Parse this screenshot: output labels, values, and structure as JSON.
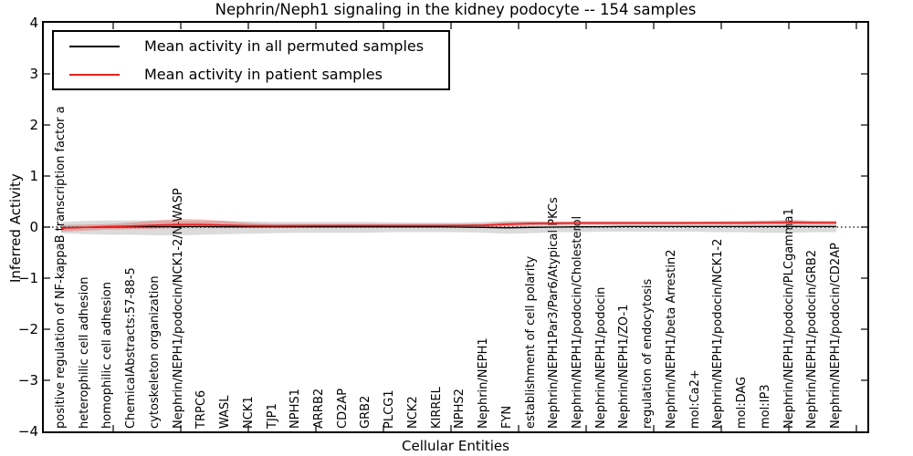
{
  "title": "Nephrin/Neph1 signaling in the kidney podocyte -- 154 samples",
  "axes": {
    "ylabel": "Inferred Activity",
    "xlabel": "Cellular Entities",
    "yticks": [
      "4",
      "3",
      "2",
      "1",
      "0",
      "−1",
      "−2",
      "−3",
      "−4"
    ]
  },
  "legend": {
    "position": "upper left",
    "items": [
      {
        "label": "Mean activity in all permuted samples",
        "color": "#000000"
      },
      {
        "label": "Mean activity in patient samples",
        "color": "#e82020"
      }
    ]
  },
  "colors": {
    "permuted_line": "#000000",
    "patient_line": "#e82020",
    "permuted_band": "rgba(110,110,110,0.25)",
    "patient_band": "rgba(235,30,30,0.28)",
    "zero_line": "#000000",
    "background": "#ffffff"
  },
  "chart_data": {
    "type": "line",
    "title": "Nephrin/Neph1 signaling in the kidney podocyte -- 154 samples",
    "xlabel": "Cellular Entities",
    "ylabel": "Inferred Activity",
    "ylim": [
      -4,
      4
    ],
    "grid": false,
    "legend_position": "upper left",
    "zero_line": 0,
    "categories": [
      "positive regulation of NF-kappaB transcription factor a",
      "heterophilic cell adhesion",
      "homophilic cell adhesion",
      "ChemicalAbstracts:57-88-5",
      "cytoskeleton organization",
      "Nephrin/NEPH1/podocin/NCK1-2/N-WASP",
      "TRPC6",
      "WASL",
      "NCK1",
      "TJP1",
      "NPHS1",
      "ARRB2",
      "CD2AP",
      "GRB2",
      "PLCG1",
      "NCK2",
      "KIRREL",
      "NPHS2",
      "Nephrin/NEPH1",
      "FYN",
      "establishment of cell polarity",
      "Nephrin/NEPH1Par3/Par6/Atypical PKCs",
      "Nephrin/NEPH1/podocin/Cholesterol",
      "Nephrin/NEPH1/podocin",
      "Nephrin/NEPH1/ZO-1",
      "regulation of endocytosis",
      "Nephrin/NEPH1/beta Arrestin2",
      "mol:Ca2+",
      "Nephrin/NEPH1/podocin/NCK1-2",
      "mol:DAG",
      "mol:IP3",
      "Nephrin/NEPH1/podocin/PLCgamma1",
      "Nephrin/NEPH1/podocin/GRB2",
      "Nephrin/NEPH1/podocin/CD2AP"
    ],
    "series": [
      {
        "name": "Mean activity in all permuted samples",
        "color": "#000000",
        "values": [
          -0.01,
          -0.005,
          0.0,
          0.005,
          0.008,
          0.01,
          0.01,
          0.008,
          0.005,
          0.005,
          0.005,
          0.005,
          0.005,
          0.005,
          0.005,
          0.005,
          0.005,
          0.0,
          -0.005,
          -0.015,
          -0.005,
          0.0,
          0.005,
          0.008,
          0.01,
          0.01,
          0.01,
          0.01,
          0.01,
          0.01,
          0.01,
          0.012,
          0.01,
          0.01
        ]
      },
      {
        "name": "Mean activity in patient samples",
        "color": "#e82020",
        "values": [
          -0.02,
          -0.005,
          0.01,
          0.02,
          0.035,
          0.05,
          0.05,
          0.035,
          0.027,
          0.025,
          0.027,
          0.03,
          0.03,
          0.03,
          0.03,
          0.03,
          0.03,
          0.032,
          0.035,
          0.055,
          0.07,
          0.075,
          0.08,
          0.08,
          0.08,
          0.08,
          0.08,
          0.082,
          0.082,
          0.082,
          0.085,
          0.09,
          0.085,
          0.085
        ]
      }
    ],
    "bands": [
      {
        "name": "permuted-samples-range",
        "color": "rgba(110,110,110,0.25)",
        "upper": [
          0.1,
          0.12,
          0.13,
          0.13,
          0.13,
          0.13,
          0.12,
          0.12,
          0.11,
          0.1,
          0.1,
          0.1,
          0.1,
          0.1,
          0.095,
          0.09,
          0.09,
          0.09,
          0.1,
          0.12,
          0.11,
          0.1,
          0.1,
          0.1,
          0.1,
          0.1,
          0.1,
          0.1,
          0.11,
          0.12,
          0.13,
          0.14,
          0.12,
          0.11
        ],
        "lower": [
          -0.12,
          -0.14,
          -0.15,
          -0.15,
          -0.16,
          -0.16,
          -0.15,
          -0.14,
          -0.13,
          -0.12,
          -0.11,
          -0.11,
          -0.11,
          -0.11,
          -0.1,
          -0.1,
          -0.1,
          -0.1,
          -0.11,
          -0.13,
          -0.12,
          -0.1,
          -0.1,
          -0.09,
          -0.09,
          -0.09,
          -0.09,
          -0.09,
          -0.1,
          -0.1,
          -0.11,
          -0.11,
          -0.1,
          -0.1
        ]
      },
      {
        "name": "patient-samples-range",
        "color": "rgba(235,30,30,0.28)",
        "upper": [
          0.04,
          0.05,
          0.06,
          0.09,
          0.13,
          0.16,
          0.15,
          0.12,
          0.08,
          0.06,
          0.06,
          0.06,
          0.06,
          0.06,
          0.06,
          0.06,
          0.06,
          0.06,
          0.07,
          0.1,
          0.11,
          0.11,
          0.11,
          0.11,
          0.11,
          0.11,
          0.11,
          0.11,
          0.11,
          0.11,
          0.12,
          0.14,
          0.12,
          0.12
        ],
        "lower": [
          -0.09,
          -0.07,
          -0.05,
          -0.04,
          -0.03,
          -0.02,
          -0.02,
          -0.02,
          -0.01,
          0.0,
          0.0,
          0.0,
          0.0,
          0.0,
          0.0,
          0.0,
          0.0,
          0.0,
          0.0,
          0.01,
          0.03,
          0.04,
          0.05,
          0.05,
          0.05,
          0.05,
          0.05,
          0.05,
          0.05,
          0.05,
          0.05,
          0.05,
          0.05,
          0.05
        ]
      }
    ]
  }
}
